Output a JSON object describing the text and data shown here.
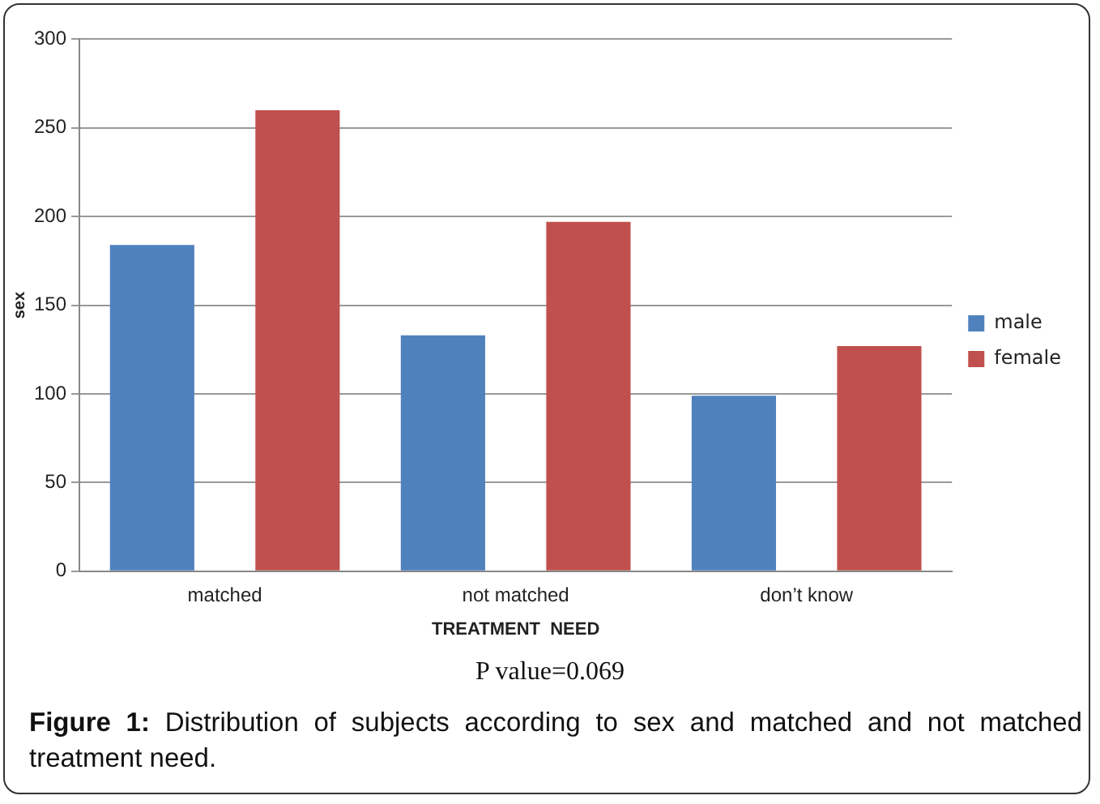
{
  "chart_data": {
    "type": "bar",
    "xlabel": "TREATMENT  NEED",
    "ylabel": "sex",
    "categories": [
      "matched",
      "not matched",
      "don’t know"
    ],
    "series": [
      {
        "name": "male",
        "color": "#4f81bd",
        "values": [
          184,
          133,
          99
        ]
      },
      {
        "name": "female",
        "color": "#c0504d",
        "values": [
          260,
          197,
          127
        ]
      }
    ],
    "ylim": [
      0,
      300
    ],
    "yticks": [
      0,
      50,
      100,
      150,
      200,
      250,
      300
    ],
    "grid": "y",
    "legend": "right",
    "annotations": [
      "P value=0.069",
      "Figure 1:  Distribution of subjects according to sex and matched and not matched treatment need."
    ]
  }
}
